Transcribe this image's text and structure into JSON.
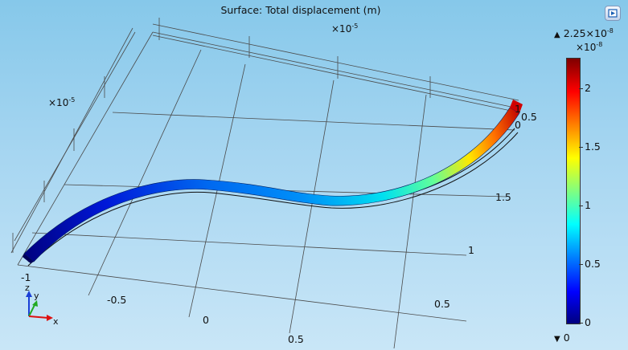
{
  "plot": {
    "title": "Surface: Total displacement (m)",
    "scale_prefix": "×10",
    "scale_exp": "-5",
    "x_ticks": [
      "-1",
      "-0.5",
      "0",
      "0.5"
    ],
    "y_ticks": [
      "0.5",
      "1",
      "1.5"
    ],
    "z_ticks": [
      "1",
      "0.5",
      "0"
    ]
  },
  "colorbar": {
    "max_label": "2.25×10",
    "max_exp": "-8",
    "min_label": "0",
    "exp_prefix": "×10",
    "exp_power": "-8",
    "ticks": [
      "2",
      "1.5",
      "1",
      "0.5",
      "0"
    ],
    "colors": [
      "#00007f",
      "#0000ff",
      "#0080ff",
      "#00ffff",
      "#80ff80",
      "#ffff00",
      "#ff8000",
      "#ff0000",
      "#7f0000"
    ]
  },
  "triad": {
    "x": "x",
    "y": "y",
    "z": "z"
  },
  "toolbar": {
    "export_icon": "export-image-icon"
  }
}
